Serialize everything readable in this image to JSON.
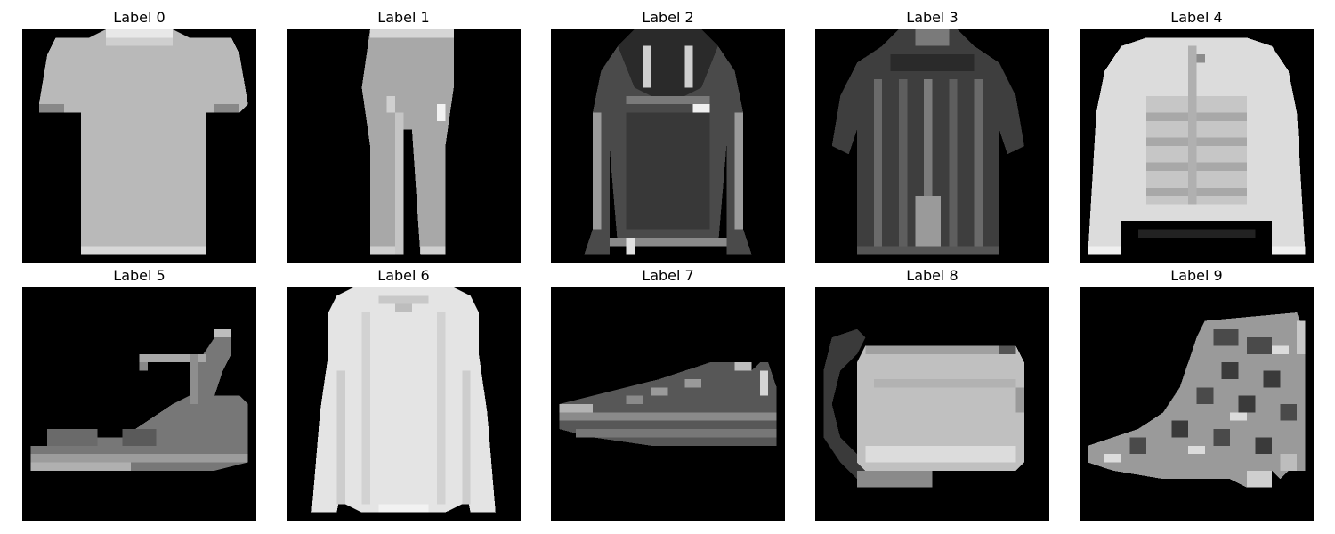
{
  "panels": [
    {
      "label": "Label 0",
      "item": "t-shirt"
    },
    {
      "label": "Label 1",
      "item": "trouser"
    },
    {
      "label": "Label 2",
      "item": "pullover"
    },
    {
      "label": "Label 3",
      "item": "dress"
    },
    {
      "label": "Label 4",
      "item": "coat"
    },
    {
      "label": "Label 5",
      "item": "sandal"
    },
    {
      "label": "Label 6",
      "item": "shirt"
    },
    {
      "label": "Label 7",
      "item": "sneaker"
    },
    {
      "label": "Label 8",
      "item": "bag"
    },
    {
      "label": "Label 9",
      "item": "ankle-boot"
    }
  ]
}
